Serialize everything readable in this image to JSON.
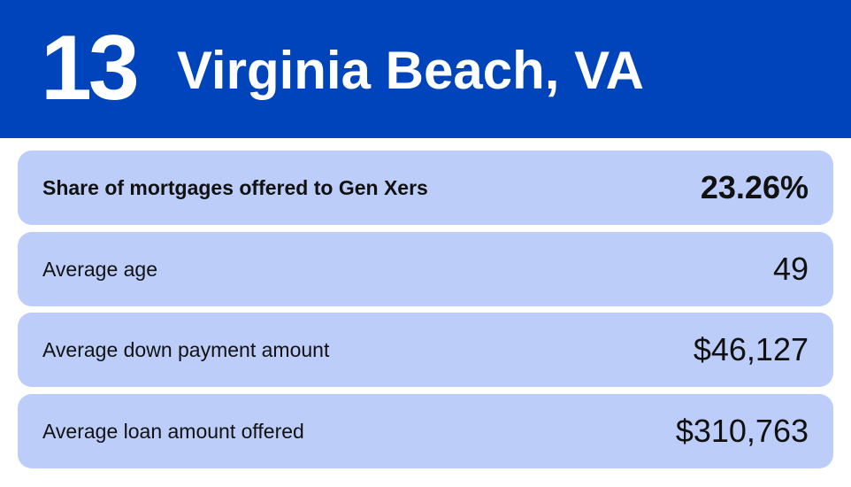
{
  "header": {
    "rank": "13",
    "city": "Virginia Beach, VA",
    "color": "#0044bb"
  },
  "rows": [
    {
      "label": "Share of mortgages offered to Gen Xers",
      "value": "23.26%"
    },
    {
      "label": "Average age",
      "value": "49"
    },
    {
      "label": "Average down payment amount",
      "value": "$46,127"
    },
    {
      "label": "Average loan amount offered",
      "value": "$310,763"
    }
  ]
}
